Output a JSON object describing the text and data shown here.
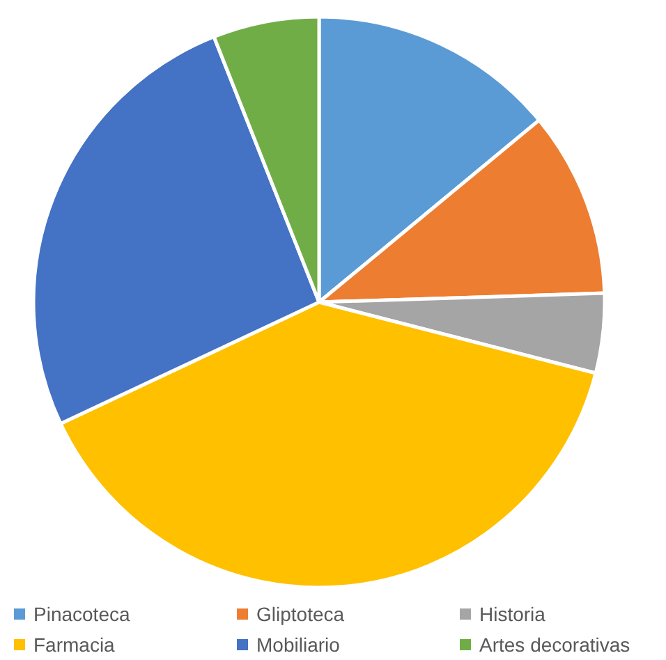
{
  "chart_data": {
    "type": "pie",
    "categories": [
      "Pinacoteca",
      "Gliptoteca",
      "Historia",
      "Farmacia",
      "Mobiliario",
      "Artes decorativas"
    ],
    "values": [
      14,
      10.5,
      4.5,
      39,
      26,
      6
    ],
    "colors": [
      "#5b9bd5",
      "#ed7d31",
      "#a5a5a5",
      "#ffc000",
      "#4472c4",
      "#70ad47"
    ],
    "legend": "bottom"
  }
}
